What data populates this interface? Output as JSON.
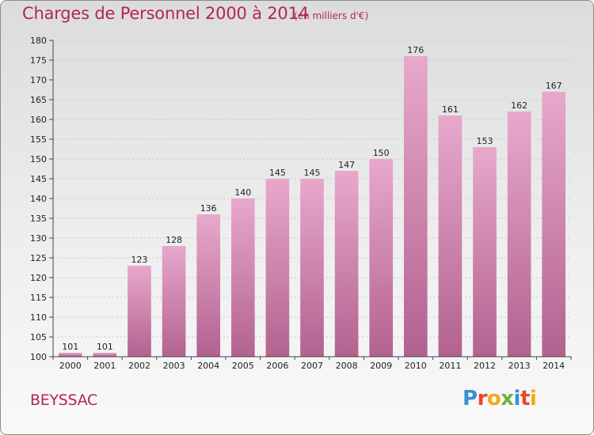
{
  "header": {
    "title": "Charges de Personnel 2000 à 2014",
    "subtitle": "(en milliers d'€)"
  },
  "footer": {
    "commune": "BEYSSAC",
    "logo_text": "Proxiti"
  },
  "colors": {
    "bar_top": "#e8a8cc",
    "bar_bottom": "#b2628f",
    "title": "#b4245a"
  },
  "chart_data": {
    "type": "bar",
    "title": "Charges de Personnel 2000 à 2014",
    "subtitle": "(en milliers d'€)",
    "xlabel": "",
    "ylabel": "",
    "categories": [
      "2000",
      "2001",
      "2002",
      "2003",
      "2004",
      "2005",
      "2006",
      "2007",
      "2008",
      "2009",
      "2010",
      "2011",
      "2012",
      "2013",
      "2014"
    ],
    "values": [
      101,
      101,
      123,
      128,
      136,
      140,
      145,
      145,
      147,
      150,
      176,
      161,
      153,
      162,
      167
    ],
    "ylim": [
      100,
      180
    ],
    "yticks": [
      100,
      105,
      110,
      115,
      120,
      125,
      130,
      135,
      140,
      145,
      150,
      155,
      160,
      165,
      170,
      175,
      180
    ],
    "grid": true,
    "legend": "none"
  }
}
